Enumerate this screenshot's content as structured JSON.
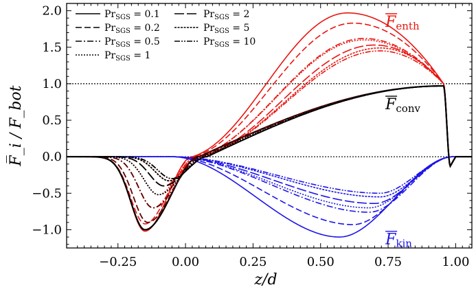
{
  "chart_data": {
    "type": "line",
    "xlabel": "z/d",
    "ylabel": "F̅_i / F_bot",
    "xlim": [
      -0.44,
      1.06
    ],
    "ylim": [
      -1.25,
      2.1
    ],
    "xticks": [
      "−0.25",
      "0.00",
      "0.25",
      "0.50",
      "0.75",
      "1.00"
    ],
    "xtick_values": [
      -0.25,
      0.0,
      0.25,
      0.5,
      0.75,
      1.0
    ],
    "yticks": [
      "−1.0",
      "−0.5",
      "0.0",
      "0.5",
      "1.0",
      "1.5",
      "2.0"
    ],
    "ytick_values": [
      -1.0,
      -0.5,
      0.0,
      0.5,
      1.0,
      1.5,
      2.0
    ],
    "reference_lines": [
      0.0,
      1.0
    ],
    "legend": {
      "placement": "top-left",
      "entries": [
        {
          "label": "Pr_SGS = 0.1",
          "text": "Pr",
          "sub": "SGS",
          "value": " = 0.1",
          "style": "solid"
        },
        {
          "label": "Pr_SGS = 0.2",
          "text": "Pr",
          "sub": "SGS",
          "value": " = 0.2",
          "style": "dashed"
        },
        {
          "label": "Pr_SGS = 0.5",
          "text": "Pr",
          "sub": "SGS",
          "value": " = 0.5",
          "style": "dashdot"
        },
        {
          "label": "Pr_SGS = 1",
          "text": "Pr",
          "sub": "SGS",
          "value": " = 1",
          "style": "dotted"
        },
        {
          "label": "Pr_SGS = 2",
          "text": "Pr",
          "sub": "SGS",
          "value": " = 2",
          "style": "longdash"
        },
        {
          "label": "Pr_SGS = 5",
          "text": "Pr",
          "sub": "SGS",
          "value": " = 5",
          "style": "densedot"
        },
        {
          "label": "Pr_SGS = 10",
          "text": "Pr",
          "sub": "SGS",
          "value": " = 10",
          "style": "dashdotdot"
        }
      ]
    },
    "annotations": [
      {
        "text": "F",
        "sub": "enth",
        "color": "#e8150f",
        "x": 0.74,
        "y": 1.78
      },
      {
        "text": "F",
        "sub": "conv",
        "color": "#000000",
        "x": 0.74,
        "y": 0.65
      },
      {
        "text": "F",
        "sub": "kin",
        "color": "#1c14e8",
        "x": 0.74,
        "y": -1.2
      }
    ],
    "colors": {
      "enth": "#e8150f",
      "conv": "#000000",
      "kin": "#1c14e8",
      "convOver": "#5a0000"
    },
    "series": [
      {
        "quantity": "enth",
        "pr": 0.1,
        "style": "solid",
        "peak": 1.97,
        "peakX": 0.6,
        "dip": -1.02,
        "dipX": -0.15,
        "zeroX": 0.025
      },
      {
        "quantity": "enth",
        "pr": 0.2,
        "style": "dashed",
        "peak": 1.83,
        "peakX": 0.62,
        "dip": -0.92,
        "dipX": -0.15,
        "zeroX": 0.03
      },
      {
        "quantity": "enth",
        "pr": 0.5,
        "style": "dashdot",
        "peak": 1.62,
        "peakX": 0.66,
        "dip": -0.7,
        "dipX": -0.12,
        "zeroX": 0.04
      },
      {
        "quantity": "enth",
        "pr": 1,
        "style": "dotted",
        "peak": 1.6,
        "peakX": 0.66,
        "dip": -0.52,
        "dipX": -0.1,
        "zeroX": 0.04
      },
      {
        "quantity": "enth",
        "pr": 2,
        "style": "longdash",
        "peak": 1.53,
        "peakX": 0.7,
        "dip": -0.4,
        "dipX": -0.08,
        "zeroX": 0.05
      },
      {
        "quantity": "enth",
        "pr": 5,
        "style": "densedot",
        "peak": 1.49,
        "peakX": 0.72,
        "dip": -0.33,
        "dipX": -0.06,
        "zeroX": 0.05
      },
      {
        "quantity": "enth",
        "pr": 10,
        "style": "dashdotdot",
        "peak": 1.45,
        "peakX": 0.72,
        "dip": -0.3,
        "dipX": -0.05,
        "zeroX": 0.05
      },
      {
        "quantity": "kin",
        "pr": 0.1,
        "style": "solid",
        "min": -1.1,
        "minX": 0.57
      },
      {
        "quantity": "kin",
        "pr": 0.2,
        "style": "dashed",
        "min": -0.93,
        "minX": 0.62
      },
      {
        "quantity": "kin",
        "pr": 0.5,
        "style": "dashdot",
        "min": -0.76,
        "minX": 0.68
      },
      {
        "quantity": "kin",
        "pr": 1,
        "style": "dotted",
        "min": -0.7,
        "minX": 0.68
      },
      {
        "quantity": "kin",
        "pr": 2,
        "style": "longdash",
        "min": -0.64,
        "minX": 0.7
      },
      {
        "quantity": "kin",
        "pr": 5,
        "style": "densedot",
        "min": -0.55,
        "minX": 0.72
      },
      {
        "quantity": "kin",
        "pr": 10,
        "style": "dashdotdot",
        "min": -0.5,
        "minX": 0.72
      },
      {
        "quantity": "conv",
        "pr": "all",
        "style": "mixed",
        "plateau": 0.97,
        "dip": -1.0,
        "dipX": -0.15
      }
    ]
  }
}
